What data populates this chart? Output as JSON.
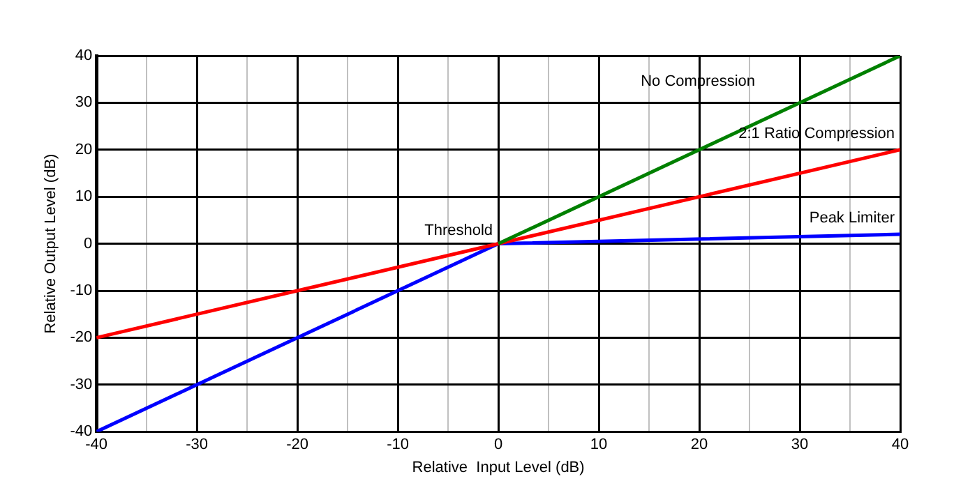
{
  "chart_data": {
    "type": "line",
    "xlabel": "Relative  Input Level (dB)",
    "ylabel": "Relative Output Level (dB)",
    "series": [
      {
        "name": "No Compression",
        "color": "#008000",
        "x": [
          0,
          40
        ],
        "values": [
          0,
          40
        ]
      },
      {
        "name": "2:1 Ratio Compression",
        "color": "#ff0000",
        "x": [
          -40,
          40
        ],
        "values": [
          -20,
          20
        ]
      },
      {
        "name": "Peak Limiter",
        "color": "#0000ff",
        "x": [
          -40,
          0,
          40
        ],
        "values": [
          -40,
          0,
          2
        ]
      }
    ],
    "xlim": [
      -40,
      40
    ],
    "ylim": [
      -40,
      40
    ],
    "xticks": [
      -40,
      {
        "value": -35,
        "label": null
      },
      -30,
      {
        "value": -25,
        "label": null
      },
      -20,
      {
        "value": -15,
        "label": null
      },
      -10,
      {
        "value": -5,
        "label": null
      },
      0,
      {
        "value": 5,
        "label": null
      },
      10,
      {
        "value": 15,
        "label": null
      },
      20,
      {
        "value": 25,
        "label": null
      },
      30,
      {
        "value": 35,
        "label": null
      },
      40
    ],
    "yticks": [
      -40,
      -30,
      -20,
      -10,
      0,
      10,
      20,
      30,
      40
    ],
    "annotations": [
      {
        "text": "Threshold",
        "x": 0,
        "y": 0
      }
    ],
    "grid": true,
    "legend": false,
    "marker": "none",
    "line_style": "solid"
  }
}
